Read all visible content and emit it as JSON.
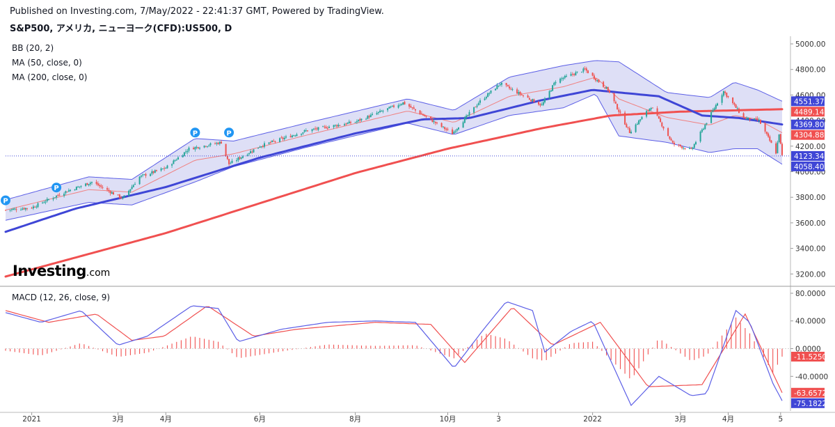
{
  "header": {
    "published": "Published on Investing.com, 7/May/2022 - 22:41:37 GMT, Powered by TradingView.",
    "symbol": "S&P500, アメリカ, ニューヨーク(CFD):US500, D"
  },
  "indicators": {
    "bb": "BB (20, 2)",
    "ma50": "MA (50, close, 0)",
    "ma200": "MA (200, close, 0)",
    "macd": "MACD (12, 26, close, 9)"
  },
  "logo": {
    "brand": "Investing",
    "suffix": ".com"
  },
  "colors": {
    "candle_up": "#26a69a",
    "candle_down": "#ef5350",
    "bb_line": "#5b5ee6",
    "bb_fill": "#d8d9f5",
    "bb_mid": "#f08080",
    "ma50": "#3f46d6",
    "ma200": "#f05050",
    "macd_line": "#5b5ee6",
    "signal_line": "#f05050",
    "histogram": "#f05050",
    "current_price": "#3f46d6",
    "dividend_marker": "#2196f3"
  },
  "chart_data": [
    {
      "type": "candlestick",
      "x_tick_labels": [
        "2021",
        "3月",
        "4月",
        "6月",
        "8月",
        "10月",
        "3",
        "2022",
        "3月",
        "4月",
        "5"
      ],
      "x_tick_dates": [
        "2021-01-04",
        "2021-03-01",
        "2021-04-01",
        "2021-06-01",
        "2021-08-02",
        "2021-10-01",
        "2021-11-03",
        "2022-01-03",
        "2022-03-01",
        "2022-04-01",
        "2022-05-05"
      ],
      "x_range": [
        "2020-12-18",
        "2022-05-06"
      ],
      "y_ticks": [
        3200,
        3400,
        3600,
        3800,
        4000,
        4200,
        4400,
        4600,
        4800,
        5000
      ],
      "y_tick_labels": [
        "3200.00",
        "3400.00",
        "3600.00",
        "3800.00",
        "4000.00",
        "4200.00",
        "4400.00",
        "4600.00",
        "4800.00",
        "5000.00"
      ],
      "ylim": [
        3120,
        5060
      ],
      "close_series": [
        {
          "date": "2020-12-18",
          "value": 3700
        },
        {
          "date": "2021-01-04",
          "value": 3720
        },
        {
          "date": "2021-01-25",
          "value": 3840
        },
        {
          "date": "2021-02-12",
          "value": 3920
        },
        {
          "date": "2021-03-04",
          "value": 3790
        },
        {
          "date": "2021-03-15",
          "value": 3960
        },
        {
          "date": "2021-04-01",
          "value": 4030
        },
        {
          "date": "2021-04-16",
          "value": 4180
        },
        {
          "date": "2021-05-07",
          "value": 4230
        },
        {
          "date": "2021-05-12",
          "value": 4060
        },
        {
          "date": "2021-06-01",
          "value": 4200
        },
        {
          "date": "2021-07-01",
          "value": 4320
        },
        {
          "date": "2021-08-02",
          "value": 4390
        },
        {
          "date": "2021-09-02",
          "value": 4540
        },
        {
          "date": "2021-10-04",
          "value": 4300
        },
        {
          "date": "2021-10-21",
          "value": 4540
        },
        {
          "date": "2021-11-04",
          "value": 4690
        },
        {
          "date": "2021-12-01",
          "value": 4520
        },
        {
          "date": "2021-12-10",
          "value": 4710
        },
        {
          "date": "2021-12-29",
          "value": 4800
        },
        {
          "date": "2022-01-13",
          "value": 4640
        },
        {
          "date": "2022-01-27",
          "value": 4310
        },
        {
          "date": "2022-02-10",
          "value": 4510
        },
        {
          "date": "2022-02-24",
          "value": 4220
        },
        {
          "date": "2022-03-08",
          "value": 4170
        },
        {
          "date": "2022-03-29",
          "value": 4630
        },
        {
          "date": "2022-04-11",
          "value": 4420
        },
        {
          "date": "2022-04-21",
          "value": 4400
        },
        {
          "date": "2022-05-02",
          "value": 4150
        },
        {
          "date": "2022-05-04",
          "value": 4300
        },
        {
          "date": "2022-05-06",
          "value": 4123.34
        }
      ],
      "ma50_series": [
        {
          "date": "2020-12-18",
          "value": 3530
        },
        {
          "date": "2021-02-01",
          "value": 3710
        },
        {
          "date": "2021-04-01",
          "value": 3880
        },
        {
          "date": "2021-06-01",
          "value": 4110
        },
        {
          "date": "2021-08-02",
          "value": 4300
        },
        {
          "date": "2021-09-15",
          "value": 4410
        },
        {
          "date": "2021-10-15",
          "value": 4420
        },
        {
          "date": "2021-12-01",
          "value": 4560
        },
        {
          "date": "2022-01-03",
          "value": 4640
        },
        {
          "date": "2022-02-15",
          "value": 4590
        },
        {
          "date": "2022-03-15",
          "value": 4440
        },
        {
          "date": "2022-04-08",
          "value": 4420
        },
        {
          "date": "2022-05-06",
          "value": 4369.8
        }
      ],
      "ma200_series": [
        {
          "date": "2020-12-18",
          "value": 3180
        },
        {
          "date": "2021-04-01",
          "value": 3520
        },
        {
          "date": "2021-08-02",
          "value": 3990
        },
        {
          "date": "2021-10-01",
          "value": 4180
        },
        {
          "date": "2021-12-01",
          "value": 4340
        },
        {
          "date": "2022-01-15",
          "value": 4440
        },
        {
          "date": "2022-03-01",
          "value": 4470
        },
        {
          "date": "2022-05-06",
          "value": 4489.14
        }
      ],
      "bb_upper": [
        {
          "date": "2020-12-18",
          "value": 3780
        },
        {
          "date": "2021-02-10",
          "value": 3960
        },
        {
          "date": "2021-03-10",
          "value": 3940
        },
        {
          "date": "2021-04-20",
          "value": 4260
        },
        {
          "date": "2021-05-15",
          "value": 4240
        },
        {
          "date": "2021-07-01",
          "value": 4380
        },
        {
          "date": "2021-09-05",
          "value": 4570
        },
        {
          "date": "2021-10-05",
          "value": 4480
        },
        {
          "date": "2021-11-10",
          "value": 4740
        },
        {
          "date": "2021-12-15",
          "value": 4830
        },
        {
          "date": "2022-01-05",
          "value": 4870
        },
        {
          "date": "2022-01-20",
          "value": 4860
        },
        {
          "date": "2022-02-20",
          "value": 4620
        },
        {
          "date": "2022-03-20",
          "value": 4580
        },
        {
          "date": "2022-04-05",
          "value": 4700
        },
        {
          "date": "2022-04-20",
          "value": 4640
        },
        {
          "date": "2022-05-06",
          "value": 4551.37
        }
      ],
      "bb_lower": [
        {
          "date": "2020-12-18",
          "value": 3620
        },
        {
          "date": "2021-02-10",
          "value": 3760
        },
        {
          "date": "2021-03-10",
          "value": 3740
        },
        {
          "date": "2021-04-20",
          "value": 3920
        },
        {
          "date": "2021-05-15",
          "value": 4040
        },
        {
          "date": "2021-07-01",
          "value": 4190
        },
        {
          "date": "2021-09-05",
          "value": 4380
        },
        {
          "date": "2021-10-05",
          "value": 4290
        },
        {
          "date": "2021-11-10",
          "value": 4440
        },
        {
          "date": "2021-12-15",
          "value": 4500
        },
        {
          "date": "2022-01-05",
          "value": 4610
        },
        {
          "date": "2022-01-20",
          "value": 4280
        },
        {
          "date": "2022-02-20",
          "value": 4230
        },
        {
          "date": "2022-03-20",
          "value": 4150
        },
        {
          "date": "2022-04-05",
          "value": 4180
        },
        {
          "date": "2022-04-20",
          "value": 4180
        },
        {
          "date": "2022-05-06",
          "value": 4058.4
        }
      ],
      "dividend_markers": [
        {
          "date": "2020-12-18",
          "value": 3700,
          "label": "P"
        },
        {
          "date": "2021-01-20",
          "value": 3800,
          "label": "P"
        },
        {
          "date": "2021-04-20",
          "value": 4230,
          "label": "P"
        },
        {
          "date": "2021-05-12",
          "value": 4230,
          "label": "P"
        }
      ],
      "price_labels": [
        {
          "name": "bb-upper",
          "value": 4551.37,
          "text": "4551.37",
          "color": "#3f46d6"
        },
        {
          "name": "ma200",
          "value": 4489.14,
          "text": "4489.14",
          "color": "#f05050"
        },
        {
          "name": "ma50",
          "value": 4369.8,
          "text": "4369.80",
          "color": "#3f46d6"
        },
        {
          "name": "bb-mid",
          "value": 4304.88,
          "text": "4304.88",
          "color": "#f05050"
        },
        {
          "name": "close",
          "value": 4123.34,
          "text": "4123.34",
          "color": "#3f46d6"
        },
        {
          "name": "bb-lower",
          "value": 4058.4,
          "text": "4058.40",
          "color": "#3f46d6"
        }
      ]
    },
    {
      "type": "line",
      "y_ticks": [
        -40,
        0,
        40,
        80
      ],
      "y_tick_labels": [
        "-40.0000",
        "0.0000",
        "40.0000",
        "80.0000"
      ],
      "ylim": [
        -90,
        85
      ],
      "macd_series": [
        {
          "date": "2020-12-18",
          "value": 52
        },
        {
          "date": "2021-01-10",
          "value": 38
        },
        {
          "date": "2021-02-05",
          "value": 55
        },
        {
          "date": "2021-03-01",
          "value": 5
        },
        {
          "date": "2021-03-20",
          "value": 18
        },
        {
          "date": "2021-04-18",
          "value": 62
        },
        {
          "date": "2021-05-05",
          "value": 58
        },
        {
          "date": "2021-05-18",
          "value": 10
        },
        {
          "date": "2021-06-15",
          "value": 28
        },
        {
          "date": "2021-07-15",
          "value": 38
        },
        {
          "date": "2021-08-15",
          "value": 40
        },
        {
          "date": "2021-09-10",
          "value": 38
        },
        {
          "date": "2021-10-05",
          "value": -28
        },
        {
          "date": "2021-10-25",
          "value": 30
        },
        {
          "date": "2021-11-08",
          "value": 68
        },
        {
          "date": "2021-11-25",
          "value": 55
        },
        {
          "date": "2021-12-03",
          "value": -5
        },
        {
          "date": "2021-12-20",
          "value": 25
        },
        {
          "date": "2022-01-03",
          "value": 40
        },
        {
          "date": "2022-01-28",
          "value": -82
        },
        {
          "date": "2022-02-15",
          "value": -40
        },
        {
          "date": "2022-03-08",
          "value": -68
        },
        {
          "date": "2022-03-18",
          "value": -65
        },
        {
          "date": "2022-04-06",
          "value": 55
        },
        {
          "date": "2022-04-15",
          "value": 38
        },
        {
          "date": "2022-04-30",
          "value": -50
        },
        {
          "date": "2022-05-06",
          "value": -75.1822
        }
      ],
      "signal_series": [
        {
          "date": "2020-12-18",
          "value": 55
        },
        {
          "date": "2021-01-15",
          "value": 38
        },
        {
          "date": "2021-02-15",
          "value": 50
        },
        {
          "date": "2021-03-10",
          "value": 12
        },
        {
          "date": "2021-03-31",
          "value": 18
        },
        {
          "date": "2021-04-28",
          "value": 62
        },
        {
          "date": "2021-05-28",
          "value": 18
        },
        {
          "date": "2021-06-25",
          "value": 28
        },
        {
          "date": "2021-08-15",
          "value": 38
        },
        {
          "date": "2021-09-20",
          "value": 35
        },
        {
          "date": "2021-10-12",
          "value": -20
        },
        {
          "date": "2021-11-12",
          "value": 60
        },
        {
          "date": "2021-12-08",
          "value": 5
        },
        {
          "date": "2022-01-08",
          "value": 38
        },
        {
          "date": "2022-02-08",
          "value": -55
        },
        {
          "date": "2022-03-15",
          "value": -52
        },
        {
          "date": "2022-04-12",
          "value": 50
        },
        {
          "date": "2022-05-06",
          "value": -63.6572
        }
      ],
      "histogram_series": [
        {
          "date": "2020-12-18",
          "value": -3
        },
        {
          "date": "2021-01-10",
          "value": -10
        },
        {
          "date": "2021-02-05",
          "value": 8
        },
        {
          "date": "2021-03-01",
          "value": -12
        },
        {
          "date": "2021-03-20",
          "value": -6
        },
        {
          "date": "2021-04-18",
          "value": 18
        },
        {
          "date": "2021-05-05",
          "value": 10
        },
        {
          "date": "2021-05-18",
          "value": -14
        },
        {
          "date": "2021-06-15",
          "value": -4
        },
        {
          "date": "2021-07-15",
          "value": 6
        },
        {
          "date": "2021-08-15",
          "value": 4
        },
        {
          "date": "2021-09-10",
          "value": 5
        },
        {
          "date": "2021-10-05",
          "value": -14
        },
        {
          "date": "2021-10-25",
          "value": 22
        },
        {
          "date": "2021-11-08",
          "value": 14
        },
        {
          "date": "2021-11-25",
          "value": -14
        },
        {
          "date": "2021-12-03",
          "value": -18
        },
        {
          "date": "2021-12-20",
          "value": 8
        },
        {
          "date": "2022-01-03",
          "value": 10
        },
        {
          "date": "2022-01-28",
          "value": -45
        },
        {
          "date": "2022-02-15",
          "value": 15
        },
        {
          "date": "2022-03-08",
          "value": -18
        },
        {
          "date": "2022-03-18",
          "value": -10
        },
        {
          "date": "2022-04-06",
          "value": 45
        },
        {
          "date": "2022-04-15",
          "value": 22
        },
        {
          "date": "2022-04-30",
          "value": -35
        },
        {
          "date": "2022-05-06",
          "value": -11.525
        }
      ],
      "value_labels": [
        {
          "name": "histogram",
          "value": -11.525,
          "text": "-11.5250",
          "color": "#f05050"
        },
        {
          "name": "signal",
          "value": -63.6572,
          "text": "-63.6572",
          "color": "#f05050"
        },
        {
          "name": "macd",
          "value": -75.1822,
          "text": "-75.1822",
          "color": "#3f46d6"
        }
      ]
    }
  ]
}
